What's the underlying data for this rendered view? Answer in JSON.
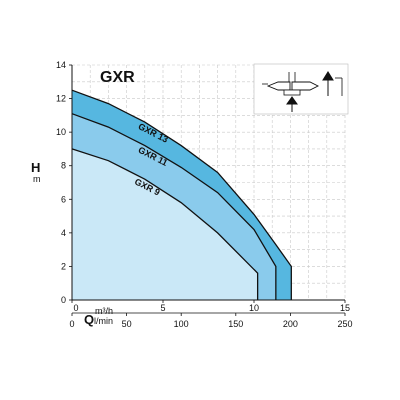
{
  "chart_data": {
    "type": "area",
    "title": "GXR",
    "ylabel": "H",
    "yunit": "m",
    "xlabel": "Q",
    "xunit_primary": "m³/h",
    "xunit_secondary": "l/min",
    "xlim": [
      0,
      15
    ],
    "ylim": [
      0,
      14
    ],
    "x_ticks": [
      0,
      5,
      10,
      15
    ],
    "y_ticks": [
      0,
      2,
      4,
      6,
      8,
      10,
      12,
      14
    ],
    "x2_ticks": [
      0,
      50,
      100,
      150,
      200,
      250
    ],
    "x2_per_x": 16.6667,
    "grid": true,
    "series": [
      {
        "name": "GXR 13",
        "x": [
          0,
          2,
          4,
          6,
          8,
          10,
          11.2,
          12.05
        ],
        "y": [
          12.5,
          11.7,
          10.6,
          9.2,
          7.6,
          5.1,
          3.3,
          2.0
        ]
      },
      {
        "name": "GXR 11",
        "x": [
          0,
          2,
          4,
          6,
          8,
          10,
          11.2
        ],
        "y": [
          11.1,
          10.3,
          9.2,
          7.9,
          6.4,
          4.2,
          2.0
        ]
      },
      {
        "name": "GXR 9",
        "x": [
          0,
          2,
          4,
          6,
          8,
          10.2
        ],
        "y": [
          9.0,
          8.3,
          7.2,
          5.8,
          4.0,
          1.6
        ]
      }
    ],
    "colors": {
      "fill_top": "#56b7e0",
      "fill_mid": "#8acbec",
      "fill_low": "#cae8f7",
      "grid": "#c8c8c8",
      "line": "#111111"
    }
  }
}
